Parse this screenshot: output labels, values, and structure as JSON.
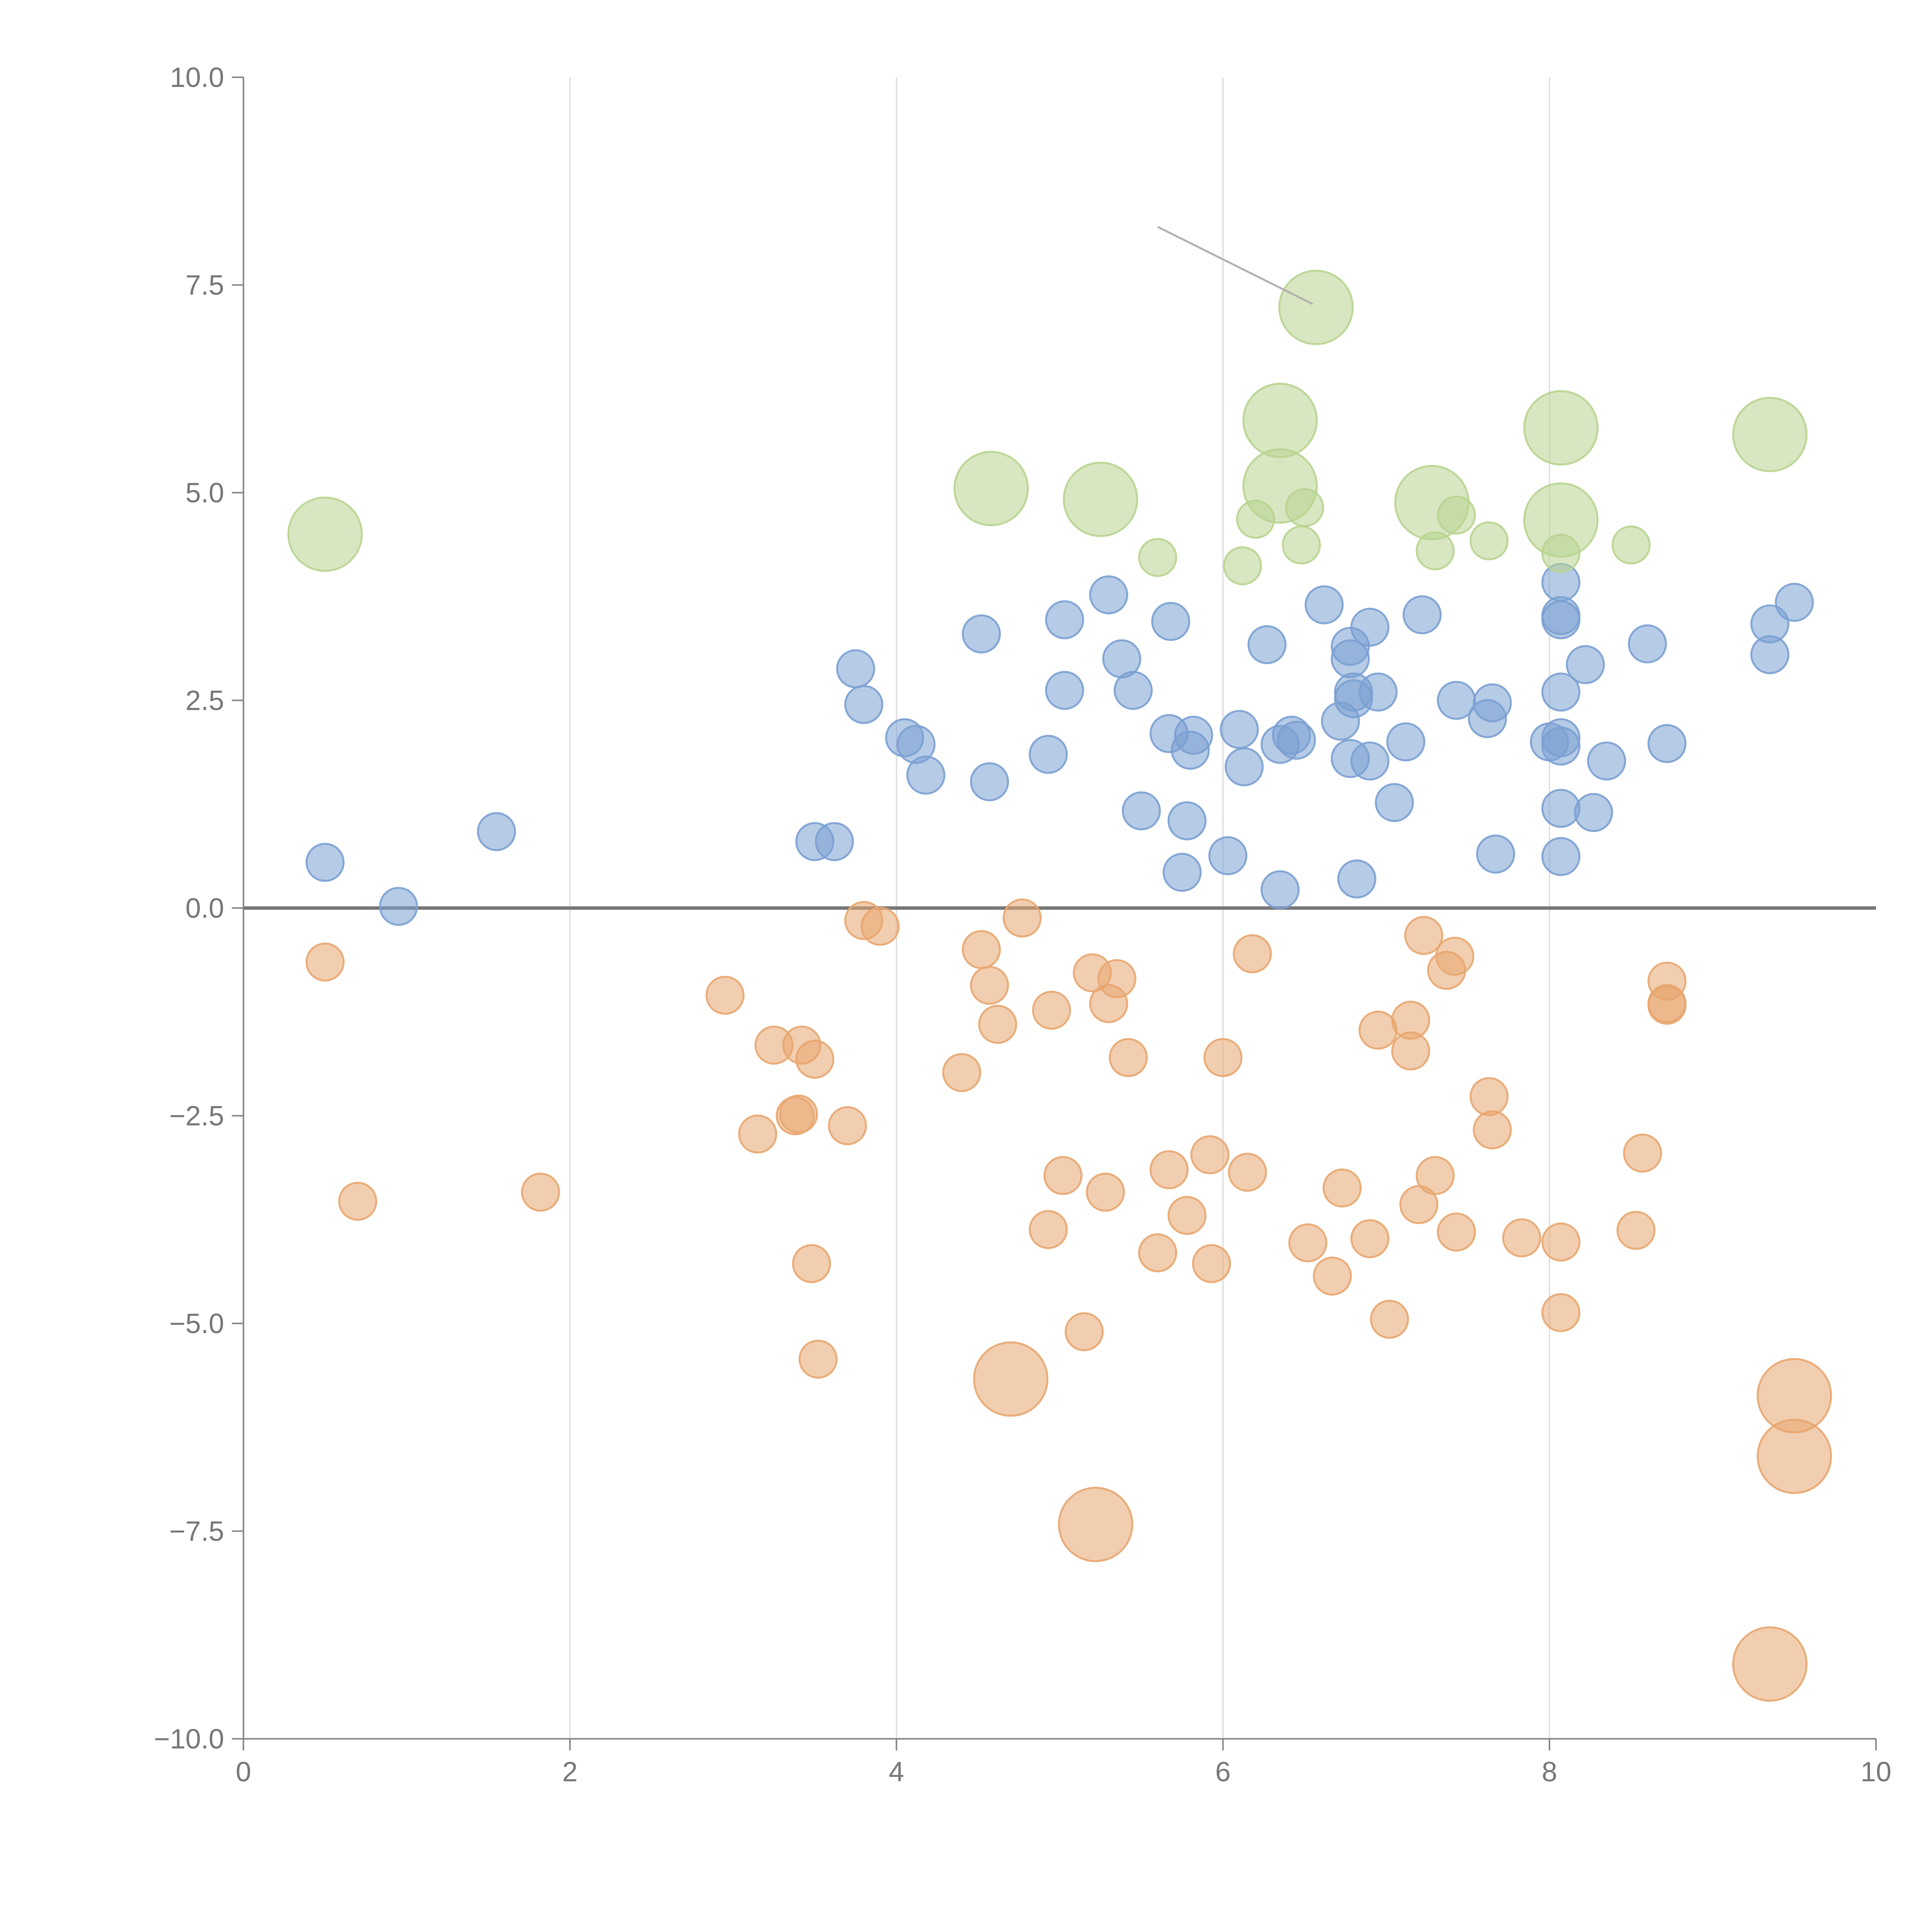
{
  "chart_data": {
    "type": "scatter",
    "title": "",
    "xlabel": "",
    "ylabel": "",
    "xlim": [
      0,
      10
    ],
    "ylim": [
      -10,
      10
    ],
    "x_ticks": [
      "0",
      "2",
      "4",
      "6",
      "8",
      "10"
    ],
    "y_ticks": [
      "10.0",
      "7.5",
      "5.0",
      "2.5",
      "0.0",
      "−2.5",
      "−5.0",
      "−7.5",
      "−10.0"
    ],
    "grid": "vertical",
    "legend": "none",
    "reference_line_y": 0,
    "colors": {
      "blue": "#7aa0d2",
      "orange": "#e8a66f",
      "green": "#b8d48f",
      "axis": "#888888",
      "grid": "#d9d9d9",
      "zero_line": "#777777",
      "connector": "#b0b0b0"
    },
    "series": [
      {
        "color": "#7aa0d2",
        "size": 1,
        "points": [
          [
            0.5,
            0.55
          ],
          [
            0.95,
            0.02
          ],
          [
            1.55,
            0.92
          ],
          [
            3.5,
            0.8
          ],
          [
            3.62,
            0.8
          ],
          [
            3.75,
            2.88
          ],
          [
            3.8,
            2.45
          ],
          [
            4.05,
            2.05
          ],
          [
            4.12,
            1.97
          ],
          [
            4.18,
            1.6
          ],
          [
            4.52,
            3.3
          ],
          [
            4.57,
            1.52
          ],
          [
            4.93,
            1.85
          ],
          [
            5.03,
            2.62
          ],
          [
            5.03,
            3.47
          ],
          [
            5.3,
            3.77
          ],
          [
            5.38,
            3.0
          ],
          [
            5.45,
            2.62
          ],
          [
            5.5,
            1.17
          ],
          [
            5.67,
            2.1
          ],
          [
            5.68,
            3.45
          ],
          [
            5.75,
            0.43
          ],
          [
            5.78,
            1.05
          ],
          [
            5.8,
            1.9
          ],
          [
            5.82,
            2.08
          ],
          [
            6.03,
            0.63
          ],
          [
            6.1,
            2.15
          ],
          [
            6.13,
            1.7
          ],
          [
            6.27,
            3.17
          ],
          [
            6.35,
            0.22
          ],
          [
            6.35,
            1.97
          ],
          [
            6.42,
            2.08
          ],
          [
            6.45,
            2.02
          ],
          [
            6.62,
            3.65
          ],
          [
            6.72,
            2.25
          ],
          [
            6.78,
            3.0
          ],
          [
            6.78,
            3.15
          ],
          [
            6.78,
            1.8
          ],
          [
            6.8,
            2.6
          ],
          [
            6.8,
            2.52
          ],
          [
            6.82,
            0.35
          ],
          [
            6.9,
            3.38
          ],
          [
            6.9,
            1.77
          ],
          [
            6.95,
            2.6
          ],
          [
            7.05,
            1.27
          ],
          [
            7.12,
            2.0
          ],
          [
            7.22,
            3.53
          ],
          [
            7.43,
            2.5
          ],
          [
            7.62,
            2.28
          ],
          [
            7.65,
            2.47
          ],
          [
            7.67,
            0.65
          ],
          [
            8.0,
            2.0
          ],
          [
            8.07,
            0.62
          ],
          [
            8.07,
            1.2
          ],
          [
            8.07,
            1.95
          ],
          [
            8.07,
            2.05
          ],
          [
            8.07,
            2.6
          ],
          [
            8.07,
            3.47
          ],
          [
            8.07,
            3.52
          ],
          [
            8.07,
            3.92
          ],
          [
            8.22,
            2.93
          ],
          [
            8.27,
            1.15
          ],
          [
            8.35,
            1.77
          ],
          [
            8.6,
            3.18
          ],
          [
            8.72,
            1.98
          ],
          [
            9.35,
            3.05
          ],
          [
            9.35,
            3.42
          ],
          [
            9.5,
            3.68
          ]
        ]
      },
      {
        "color": "#e8a66f",
        "size": 1,
        "points": [
          [
            0.5,
            -0.65
          ],
          [
            0.7,
            -3.53
          ],
          [
            1.82,
            -3.42
          ],
          [
            2.95,
            -1.05
          ],
          [
            3.15,
            -2.72
          ],
          [
            3.25,
            -1.65
          ],
          [
            3.38,
            -2.5
          ],
          [
            3.4,
            -2.48
          ],
          [
            3.42,
            -1.65
          ],
          [
            3.48,
            -4.28
          ],
          [
            3.5,
            -1.82
          ],
          [
            3.52,
            -5.43
          ],
          [
            3.7,
            -2.62
          ],
          [
            3.8,
            -0.15
          ],
          [
            3.9,
            -0.22
          ],
          [
            4.4,
            -1.98
          ],
          [
            4.52,
            -0.5
          ],
          [
            4.57,
            -0.93
          ],
          [
            4.62,
            -1.4
          ],
          [
            4.77,
            -0.12
          ],
          [
            4.93,
            -3.87
          ],
          [
            4.95,
            -1.23
          ],
          [
            5.02,
            -3.22
          ],
          [
            5.15,
            -5.1
          ],
          [
            5.2,
            -0.78
          ],
          [
            5.28,
            -3.42
          ],
          [
            5.3,
            -1.15
          ],
          [
            5.35,
            -0.85
          ],
          [
            5.42,
            -1.8
          ],
          [
            5.6,
            -4.15
          ],
          [
            5.67,
            -3.15
          ],
          [
            5.78,
            -3.7
          ],
          [
            5.92,
            -2.97
          ],
          [
            5.93,
            -4.28
          ],
          [
            6.0,
            -1.8
          ],
          [
            6.15,
            -3.18
          ],
          [
            6.18,
            -0.55
          ],
          [
            6.52,
            -4.03
          ],
          [
            6.67,
            -4.43
          ],
          [
            6.73,
            -3.37
          ],
          [
            6.9,
            -3.98
          ],
          [
            6.95,
            -1.47
          ],
          [
            7.02,
            -4.95
          ],
          [
            7.15,
            -1.35
          ],
          [
            7.15,
            -1.72
          ],
          [
            7.2,
            -3.57
          ],
          [
            7.23,
            -0.33
          ],
          [
            7.3,
            -3.22
          ],
          [
            7.37,
            -0.75
          ],
          [
            7.42,
            -0.58
          ],
          [
            7.43,
            -3.9
          ],
          [
            7.63,
            -2.27
          ],
          [
            7.65,
            -2.67
          ],
          [
            7.83,
            -3.97
          ],
          [
            8.07,
            -4.02
          ],
          [
            8.07,
            -4.87
          ],
          [
            8.53,
            -3.88
          ],
          [
            8.57,
            -2.95
          ],
          [
            8.72,
            -0.88
          ],
          [
            8.72,
            -1.15
          ],
          [
            8.72,
            -1.17
          ]
        ]
      },
      {
        "color": "#b8d48f",
        "size": 1,
        "points": [
          [
            5.6,
            4.22
          ],
          [
            6.12,
            4.12
          ],
          [
            6.2,
            4.68
          ],
          [
            6.48,
            4.37
          ],
          [
            6.5,
            4.82
          ],
          [
            7.3,
            4.3
          ],
          [
            7.43,
            4.73
          ],
          [
            7.63,
            4.42
          ],
          [
            8.07,
            4.27
          ],
          [
            8.5,
            4.37
          ]
        ]
      },
      {
        "color": "#b8d48f",
        "size": 2,
        "points": [
          [
            0.5,
            4.5
          ],
          [
            4.58,
            5.05
          ],
          [
            5.25,
            4.92
          ],
          [
            6.35,
            5.08
          ],
          [
            6.35,
            5.87
          ],
          [
            6.57,
            7.23
          ],
          [
            7.28,
            4.88
          ],
          [
            8.07,
            5.78
          ],
          [
            8.07,
            4.67
          ],
          [
            9.35,
            5.7
          ]
        ]
      },
      {
        "color": "#e8a66f",
        "size": 2,
        "points": [
          [
            4.7,
            -5.67
          ],
          [
            5.22,
            -7.42
          ],
          [
            9.35,
            -9.1
          ],
          [
            9.5,
            -5.87
          ],
          [
            9.5,
            -6.6
          ]
        ]
      }
    ],
    "connector_line": [
      [
        5.6,
        8.2
      ],
      [
        6.55,
        7.27
      ]
    ]
  }
}
